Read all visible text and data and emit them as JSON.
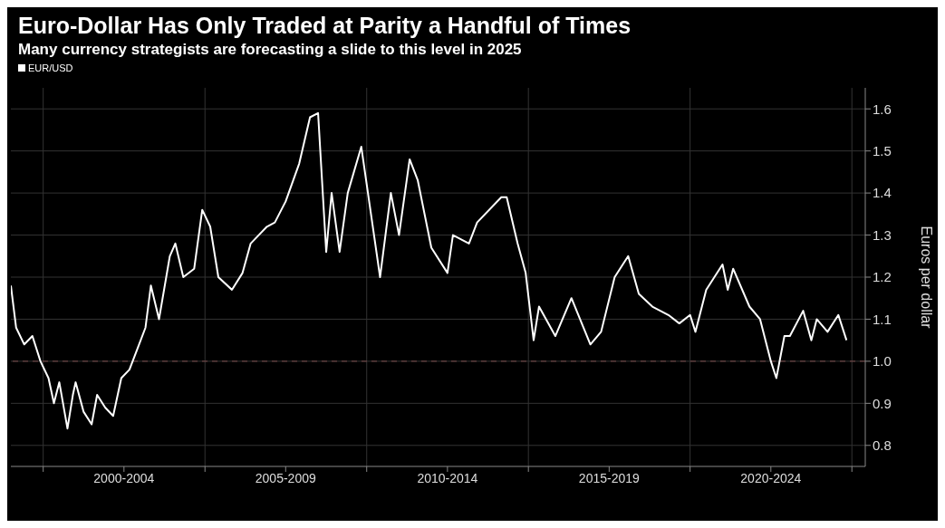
{
  "chart_data": {
    "type": "line",
    "title": "Euro-Dollar Has Only Traded at Parity a Handful of Times",
    "subtitle": "Many currency strategists are forecasting a slide to this level in 2025",
    "ylabel": "Euros per dollar",
    "x": [
      "1999-01",
      "1999-03",
      "1999-06",
      "1999-09",
      "1999-12",
      "2000-03",
      "2000-05",
      "2000-07",
      "2000-10",
      "2000-12",
      "2001-01",
      "2001-04",
      "2001-07",
      "2001-09",
      "2001-12",
      "2002-03",
      "2002-06",
      "2002-09",
      "2002-12",
      "2003-03",
      "2003-05",
      "2003-08",
      "2003-12",
      "2004-02",
      "2004-05",
      "2004-09",
      "2004-12",
      "2005-03",
      "2005-06",
      "2005-11",
      "2006-03",
      "2006-06",
      "2006-12",
      "2007-03",
      "2007-07",
      "2007-12",
      "2008-04",
      "2008-07",
      "2008-10",
      "2008-12",
      "2009-03",
      "2009-06",
      "2009-11",
      "2010-06",
      "2010-08",
      "2010-10",
      "2011-01",
      "2011-05",
      "2011-08",
      "2012-01",
      "2012-07",
      "2012-09",
      "2013-03",
      "2013-06",
      "2014-03",
      "2014-05",
      "2014-09",
      "2014-12",
      "2015-03",
      "2015-05",
      "2015-11",
      "2016-05",
      "2016-12",
      "2017-04",
      "2017-09",
      "2018-02",
      "2018-06",
      "2018-11",
      "2019-05",
      "2019-09",
      "2020-01",
      "2020-03",
      "2020-07",
      "2021-01",
      "2021-03",
      "2021-05",
      "2021-11",
      "2022-03",
      "2022-07",
      "2022-09",
      "2022-12",
      "2023-02",
      "2023-07",
      "2023-10",
      "2023-12",
      "2024-04",
      "2024-08",
      "2024-11"
    ],
    "series": [
      {
        "name": "EUR/USD",
        "color": "#ffffff",
        "values": [
          1.18,
          1.08,
          1.04,
          1.06,
          1.0,
          0.96,
          0.9,
          0.95,
          0.84,
          0.92,
          0.95,
          0.88,
          0.85,
          0.92,
          0.89,
          0.87,
          0.96,
          0.98,
          1.03,
          1.08,
          1.18,
          1.1,
          1.25,
          1.28,
          1.2,
          1.22,
          1.36,
          1.32,
          1.2,
          1.17,
          1.21,
          1.28,
          1.32,
          1.33,
          1.38,
          1.47,
          1.58,
          1.59,
          1.26,
          1.4,
          1.26,
          1.4,
          1.51,
          1.2,
          1.3,
          1.4,
          1.3,
          1.48,
          1.43,
          1.27,
          1.21,
          1.3,
          1.28,
          1.33,
          1.39,
          1.39,
          1.28,
          1.21,
          1.05,
          1.13,
          1.06,
          1.15,
          1.04,
          1.07,
          1.2,
          1.25,
          1.16,
          1.13,
          1.11,
          1.09,
          1.11,
          1.07,
          1.17,
          1.23,
          1.17,
          1.22,
          1.13,
          1.1,
          1.0,
          0.96,
          1.06,
          1.06,
          1.12,
          1.05,
          1.1,
          1.07,
          1.11,
          1.05
        ]
      }
    ],
    "xlim": [
      "1999-01",
      "2025-06"
    ],
    "xticks": [
      {
        "value": "2000-01",
        "label": null
      },
      {
        "value": "2002-07",
        "label": "2000-2004"
      },
      {
        "value": "2005-01",
        "label": null
      },
      {
        "value": "2007-07",
        "label": "2005-2009"
      },
      {
        "value": "2010-01",
        "label": null
      },
      {
        "value": "2012-07",
        "label": "2010-2014"
      },
      {
        "value": "2015-01",
        "label": null
      },
      {
        "value": "2017-07",
        "label": "2015-2019"
      },
      {
        "value": "2020-01",
        "label": null
      },
      {
        "value": "2022-07",
        "label": "2020-2024"
      },
      {
        "value": "2025-01",
        "label": null
      }
    ],
    "ylim": [
      0.75,
      1.65
    ],
    "yticks": [
      0.8,
      0.9,
      {
        "value": 1,
        "label": "1.0"
      },
      1.1,
      1.2,
      1.3,
      1.4,
      1.5,
      1.6
    ],
    "ref_lines": [
      {
        "axis": "y",
        "value": 1.0,
        "label": null,
        "color": "#7a4a4a",
        "line_style": "dashed"
      }
    ],
    "grid": true,
    "legend": "top left",
    "marker": "none",
    "line_style": "solid"
  }
}
